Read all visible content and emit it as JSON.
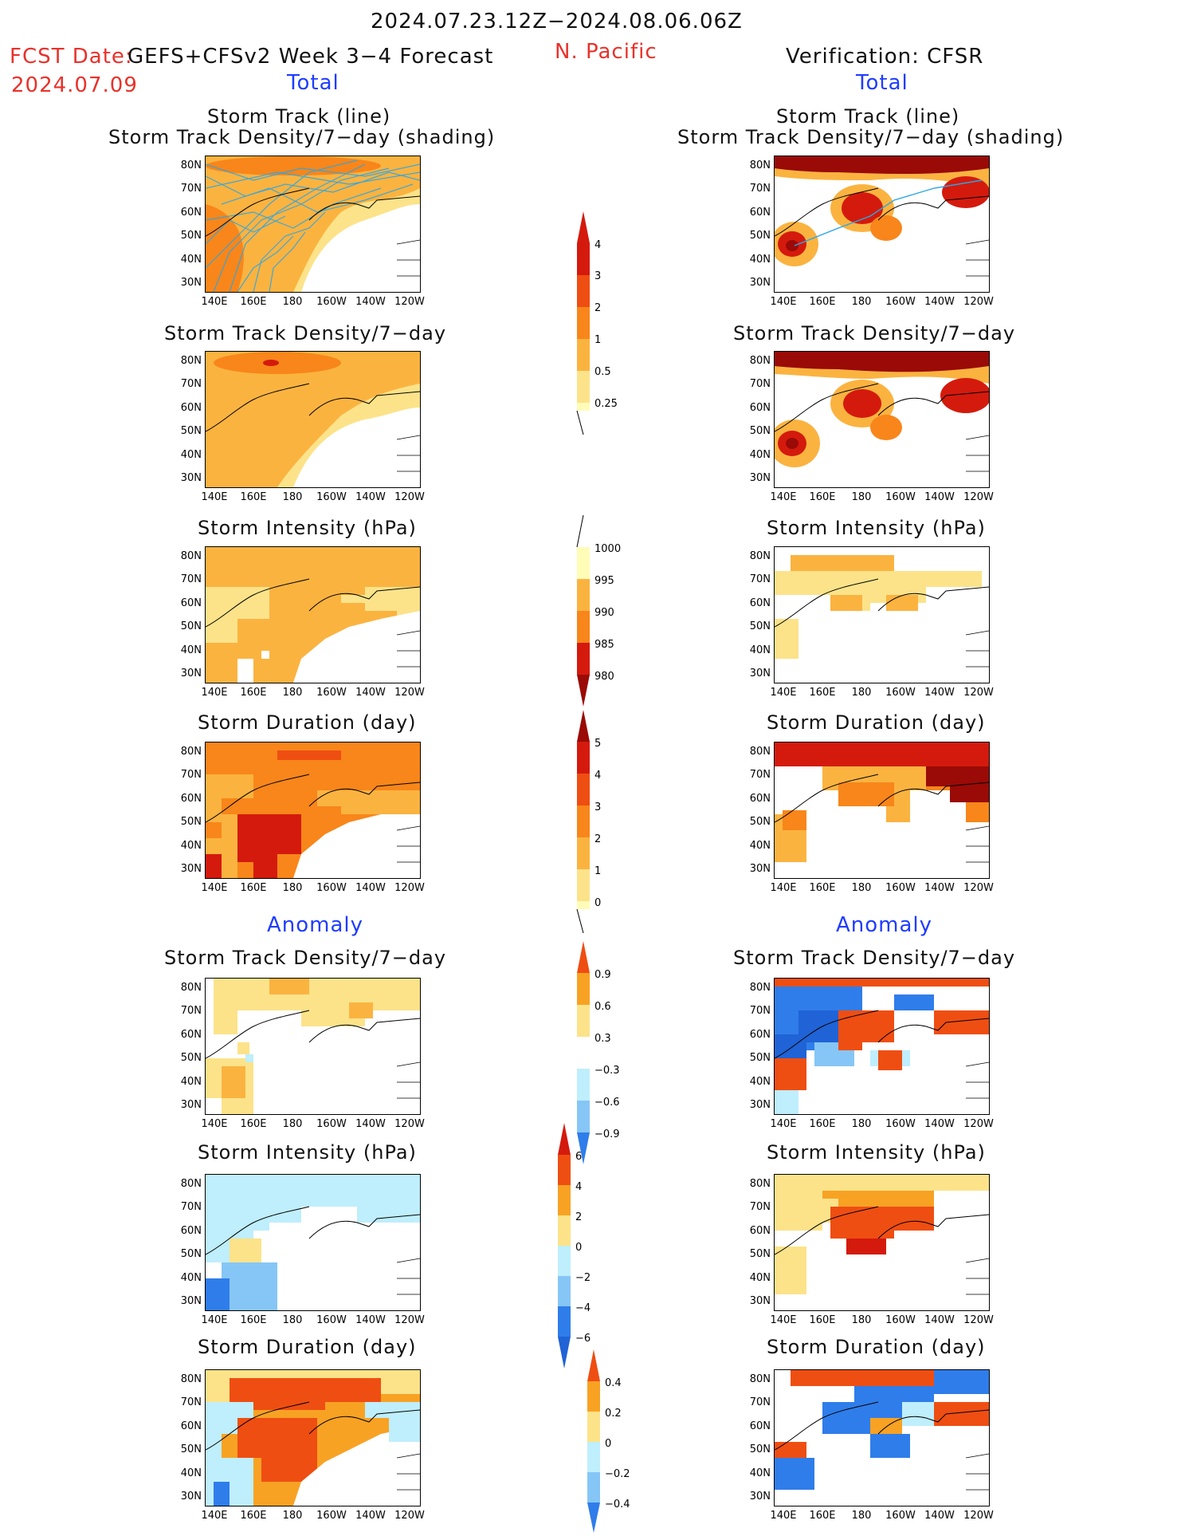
{
  "header": {
    "date_range": "2024.07.23.12Z−2024.08.06.06Z",
    "fcst_label": "FCST Date:",
    "fcst_date": "2024.07.09",
    "model": "GEFS+CFSv2 Week 3−4 Forecast",
    "region": "N. Pacific",
    "verification": "Verification: CFSR",
    "total_left": "Total",
    "total_right": "Total",
    "anomaly_left": "Anomaly",
    "anomaly_right": "Anomaly"
  },
  "axes": {
    "lat_labels": [
      "80N",
      "70N",
      "60N",
      "50N",
      "40N",
      "30N"
    ],
    "lon_labels": [
      "140E",
      "160E",
      "180",
      "160W",
      "140W",
      "120W"
    ]
  },
  "panels": {
    "l1_title_a": "Storm Track (line)",
    "l1_title_b": "Storm Track Density/7−day (shading)",
    "r1_title_a": "Storm Track (line)",
    "r1_title_b": "Storm Track Density/7−day (shading)",
    "l2_title": "Storm Track Density/7−day",
    "r2_title": "Storm Track Density/7−day",
    "l3_title": "Storm Intensity (hPa)",
    "r3_title": "Storm Intensity (hPa)",
    "l4_title": "Storm Duration (day)",
    "r4_title": "Storm Duration (day)",
    "l5_title": "Storm Track Density/7−day",
    "r5_title": "Storm Track Density/7−day",
    "l6_title": "Storm Intensity (hPa)",
    "r6_title": "Storm Intensity (hPa)",
    "l7_title": "Storm Duration (day)",
    "r7_title": "Storm Duration (day)"
  },
  "colorbars": {
    "density": [
      "4",
      "3",
      "2",
      "1",
      "0.5",
      "0.25"
    ],
    "intensity": [
      "1000",
      "995",
      "990",
      "985",
      "980"
    ],
    "duration": [
      "5",
      "4",
      "3",
      "2",
      "1",
      "0"
    ],
    "density_anom": [
      "0.9",
      "0.6",
      "0.3",
      "−0.3",
      "−0.6",
      "−0.9"
    ],
    "intensity_anom": [
      "6",
      "4",
      "2",
      "0",
      "−2",
      "−4",
      "−6"
    ],
    "duration_anom": [
      "0.4",
      "0.2",
      "0",
      "−0.2",
      "−0.4"
    ]
  },
  "colors": {
    "total_scale": [
      "#fffcb8",
      "#fce38a",
      "#fbb340",
      "#f8861a",
      "#ef4e12",
      "#d41a0d",
      "#9a0a07"
    ],
    "anom_warm": [
      "#fce38a",
      "#f8a224",
      "#f34b12"
    ],
    "anom_cool": [
      "#bfeefc",
      "#86c6f7",
      "#2f7dea"
    ],
    "track_line": "#2aa6e6"
  }
}
